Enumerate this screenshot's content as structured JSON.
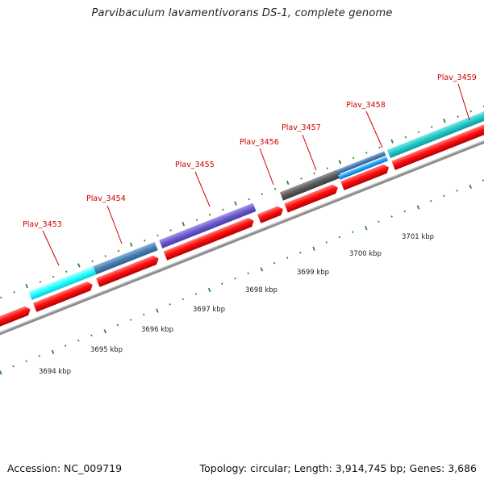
{
  "title": "Parvibaculum lavamentivorans DS-1, complete genome",
  "footer": {
    "accession": "Accession: NC_009719",
    "summary": "Topology: circular; Length: 3,914,745 bp; Genes: 3,686"
  },
  "colors": {
    "background": "#ffffff",
    "backbone": "#8c8c8c",
    "cds": "#ee0000",
    "ticks": "#2a8a2a",
    "label_red": "#cc0000",
    "feature_cyan": "#22ffff",
    "feature_steel": "#4a7fb0",
    "feature_purple": "#6a5acd",
    "feature_gray": "#555555",
    "feature_teal": "#20c8c8",
    "feature_blue": "#1a9fff"
  },
  "scale_labels": [
    {
      "text": "3694 kbp"
    },
    {
      "text": "3695 kbp"
    },
    {
      "text": "3696 kbp"
    },
    {
      "text": "3697 kbp"
    },
    {
      "text": "3698 kbp"
    },
    {
      "text": "3699 kbp"
    },
    {
      "text": "3700 kbp"
    },
    {
      "text": "3701 kbp"
    }
  ],
  "gene_labels": [
    {
      "text": "Plav_3453"
    },
    {
      "text": "Plav_3454"
    },
    {
      "text": "Plav_3455"
    },
    {
      "text": "Plav_3456"
    },
    {
      "text": "Plav_3457"
    },
    {
      "text": "Plav_3458"
    },
    {
      "text": "Plav_3459"
    }
  ]
}
